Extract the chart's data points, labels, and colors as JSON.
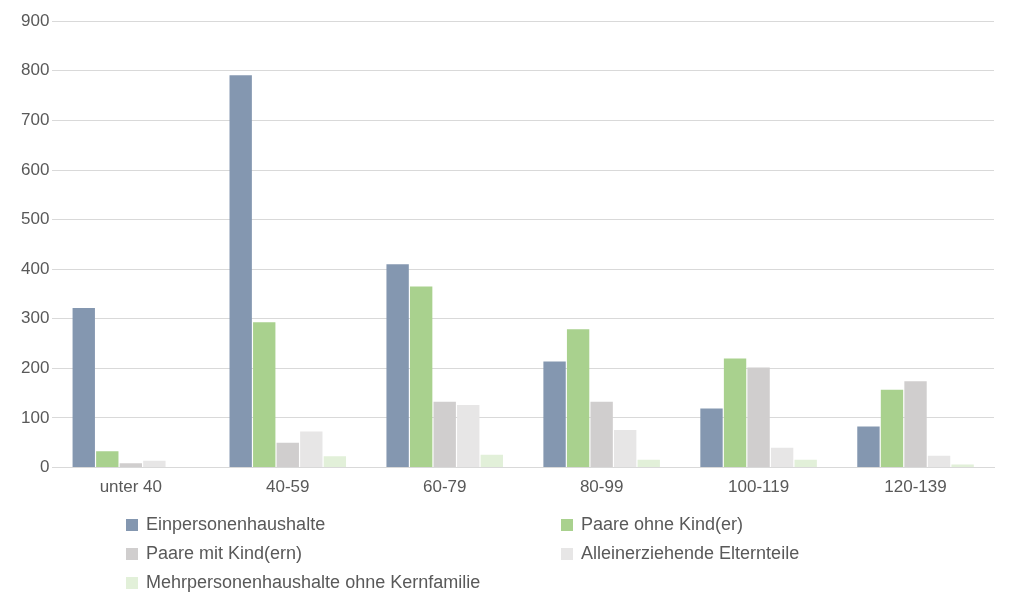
{
  "chart_data": {
    "type": "bar",
    "categories": [
      "unter 40",
      "40-59",
      "60-79",
      "80-99",
      "100-119",
      "120-139"
    ],
    "series": [
      {
        "name": "Einpersonenhaushalte",
        "color": "#8497b0",
        "values": [
          322,
          791,
          410,
          214,
          119,
          83
        ]
      },
      {
        "name": "Paare ohne Kind(er)",
        "color": "#a9d18e",
        "values": [
          33,
          293,
          365,
          279,
          220,
          157
        ]
      },
      {
        "name": "Paare mit Kind(ern)",
        "color": "#d0cece",
        "values": [
          9,
          50,
          133,
          133,
          202,
          174
        ]
      },
      {
        "name": "Alleinerziehende Elternteile",
        "color": "#e7e6e6",
        "values": [
          14,
          73,
          126,
          76,
          40,
          24
        ]
      },
      {
        "name": "Mehrpersonenhaushalte ohne Kernfamilie",
        "color": "#e2f0d9",
        "values": [
          null,
          23,
          26,
          16,
          16,
          6
        ]
      }
    ],
    "ylim": [
      0,
      900
    ],
    "yticks": [
      0,
      100,
      200,
      300,
      400,
      500,
      600,
      700,
      800,
      900
    ],
    "grid": "y",
    "legend": "bottom"
  }
}
